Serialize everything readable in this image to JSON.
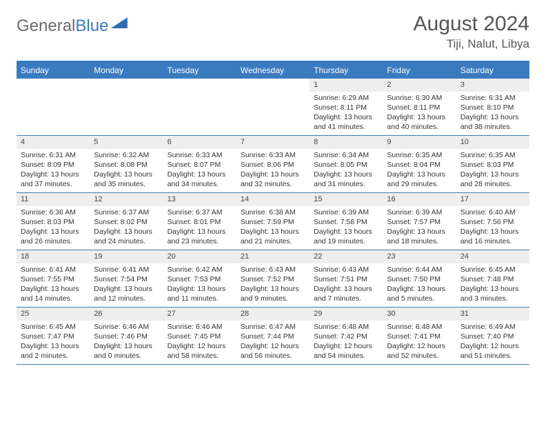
{
  "logo": {
    "word1": "General",
    "word2": "Blue"
  },
  "title": "August 2024",
  "location": "Tiji, Nalut, Libya",
  "colors": {
    "accent": "#3a7bbf",
    "header_bg": "#3a7bbf",
    "daynum_bg": "#eeeeee",
    "text": "#333333",
    "logo_gray": "#6b6b6b"
  },
  "weekdays": [
    "Sunday",
    "Monday",
    "Tuesday",
    "Wednesday",
    "Thursday",
    "Friday",
    "Saturday"
  ],
  "weeks": [
    [
      {
        "n": "",
        "sr": "",
        "ss": "",
        "dl": ""
      },
      {
        "n": "",
        "sr": "",
        "ss": "",
        "dl": ""
      },
      {
        "n": "",
        "sr": "",
        "ss": "",
        "dl": ""
      },
      {
        "n": "",
        "sr": "",
        "ss": "",
        "dl": ""
      },
      {
        "n": "1",
        "sr": "Sunrise: 6:29 AM",
        "ss": "Sunset: 8:11 PM",
        "dl": "Daylight: 13 hours and 41 minutes."
      },
      {
        "n": "2",
        "sr": "Sunrise: 6:30 AM",
        "ss": "Sunset: 8:11 PM",
        "dl": "Daylight: 13 hours and 40 minutes."
      },
      {
        "n": "3",
        "sr": "Sunrise: 6:31 AM",
        "ss": "Sunset: 8:10 PM",
        "dl": "Daylight: 13 hours and 38 minutes."
      }
    ],
    [
      {
        "n": "4",
        "sr": "Sunrise: 6:31 AM",
        "ss": "Sunset: 8:09 PM",
        "dl": "Daylight: 13 hours and 37 minutes."
      },
      {
        "n": "5",
        "sr": "Sunrise: 6:32 AM",
        "ss": "Sunset: 8:08 PM",
        "dl": "Daylight: 13 hours and 35 minutes."
      },
      {
        "n": "6",
        "sr": "Sunrise: 6:33 AM",
        "ss": "Sunset: 8:07 PM",
        "dl": "Daylight: 13 hours and 34 minutes."
      },
      {
        "n": "7",
        "sr": "Sunrise: 6:33 AM",
        "ss": "Sunset: 8:06 PM",
        "dl": "Daylight: 13 hours and 32 minutes."
      },
      {
        "n": "8",
        "sr": "Sunrise: 6:34 AM",
        "ss": "Sunset: 8:05 PM",
        "dl": "Daylight: 13 hours and 31 minutes."
      },
      {
        "n": "9",
        "sr": "Sunrise: 6:35 AM",
        "ss": "Sunset: 8:04 PM",
        "dl": "Daylight: 13 hours and 29 minutes."
      },
      {
        "n": "10",
        "sr": "Sunrise: 6:35 AM",
        "ss": "Sunset: 8:03 PM",
        "dl": "Daylight: 13 hours and 28 minutes."
      }
    ],
    [
      {
        "n": "11",
        "sr": "Sunrise: 6:36 AM",
        "ss": "Sunset: 8:03 PM",
        "dl": "Daylight: 13 hours and 26 minutes."
      },
      {
        "n": "12",
        "sr": "Sunrise: 6:37 AM",
        "ss": "Sunset: 8:02 PM",
        "dl": "Daylight: 13 hours and 24 minutes."
      },
      {
        "n": "13",
        "sr": "Sunrise: 6:37 AM",
        "ss": "Sunset: 8:01 PM",
        "dl": "Daylight: 13 hours and 23 minutes."
      },
      {
        "n": "14",
        "sr": "Sunrise: 6:38 AM",
        "ss": "Sunset: 7:59 PM",
        "dl": "Daylight: 13 hours and 21 minutes."
      },
      {
        "n": "15",
        "sr": "Sunrise: 6:39 AM",
        "ss": "Sunset: 7:58 PM",
        "dl": "Daylight: 13 hours and 19 minutes."
      },
      {
        "n": "16",
        "sr": "Sunrise: 6:39 AM",
        "ss": "Sunset: 7:57 PM",
        "dl": "Daylight: 13 hours and 18 minutes."
      },
      {
        "n": "17",
        "sr": "Sunrise: 6:40 AM",
        "ss": "Sunset: 7:56 PM",
        "dl": "Daylight: 13 hours and 16 minutes."
      }
    ],
    [
      {
        "n": "18",
        "sr": "Sunrise: 6:41 AM",
        "ss": "Sunset: 7:55 PM",
        "dl": "Daylight: 13 hours and 14 minutes."
      },
      {
        "n": "19",
        "sr": "Sunrise: 6:41 AM",
        "ss": "Sunset: 7:54 PM",
        "dl": "Daylight: 13 hours and 12 minutes."
      },
      {
        "n": "20",
        "sr": "Sunrise: 6:42 AM",
        "ss": "Sunset: 7:53 PM",
        "dl": "Daylight: 13 hours and 11 minutes."
      },
      {
        "n": "21",
        "sr": "Sunrise: 6:43 AM",
        "ss": "Sunset: 7:52 PM",
        "dl": "Daylight: 13 hours and 9 minutes."
      },
      {
        "n": "22",
        "sr": "Sunrise: 6:43 AM",
        "ss": "Sunset: 7:51 PM",
        "dl": "Daylight: 13 hours and 7 minutes."
      },
      {
        "n": "23",
        "sr": "Sunrise: 6:44 AM",
        "ss": "Sunset: 7:50 PM",
        "dl": "Daylight: 13 hours and 5 minutes."
      },
      {
        "n": "24",
        "sr": "Sunrise: 6:45 AM",
        "ss": "Sunset: 7:48 PM",
        "dl": "Daylight: 13 hours and 3 minutes."
      }
    ],
    [
      {
        "n": "25",
        "sr": "Sunrise: 6:45 AM",
        "ss": "Sunset: 7:47 PM",
        "dl": "Daylight: 13 hours and 2 minutes."
      },
      {
        "n": "26",
        "sr": "Sunrise: 6:46 AM",
        "ss": "Sunset: 7:46 PM",
        "dl": "Daylight: 13 hours and 0 minutes."
      },
      {
        "n": "27",
        "sr": "Sunrise: 6:46 AM",
        "ss": "Sunset: 7:45 PM",
        "dl": "Daylight: 12 hours and 58 minutes."
      },
      {
        "n": "28",
        "sr": "Sunrise: 6:47 AM",
        "ss": "Sunset: 7:44 PM",
        "dl": "Daylight: 12 hours and 56 minutes."
      },
      {
        "n": "29",
        "sr": "Sunrise: 6:48 AM",
        "ss": "Sunset: 7:42 PM",
        "dl": "Daylight: 12 hours and 54 minutes."
      },
      {
        "n": "30",
        "sr": "Sunrise: 6:48 AM",
        "ss": "Sunset: 7:41 PM",
        "dl": "Daylight: 12 hours and 52 minutes."
      },
      {
        "n": "31",
        "sr": "Sunrise: 6:49 AM",
        "ss": "Sunset: 7:40 PM",
        "dl": "Daylight: 12 hours and 51 minutes."
      }
    ]
  ]
}
